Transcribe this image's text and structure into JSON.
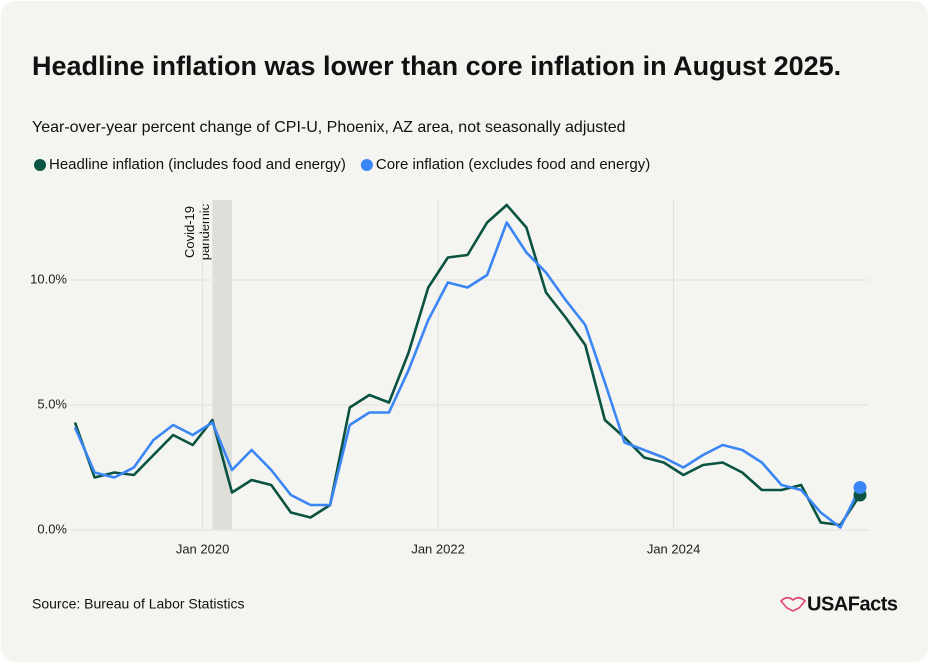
{
  "chart_data": {
    "type": "line",
    "title": "Headline inflation was lower than core inflation in August 2025.",
    "subtitle": "Year-over-year percent change of CPI-U, Phoenix, AZ area, not seasonally adjusted",
    "source": "Source: Bureau of Labor Statistics",
    "brand": "USAFacts",
    "x": [
      "2018-12",
      "2019-02",
      "2019-04",
      "2019-06",
      "2019-08",
      "2019-10",
      "2019-12",
      "2020-02",
      "2020-04",
      "2020-06",
      "2020-08",
      "2020-10",
      "2020-12",
      "2021-02",
      "2021-04",
      "2021-06",
      "2021-08",
      "2021-10",
      "2021-12",
      "2022-02",
      "2022-04",
      "2022-06",
      "2022-08",
      "2022-10",
      "2022-12",
      "2023-02",
      "2023-04",
      "2023-06",
      "2023-08",
      "2023-10",
      "2023-12",
      "2024-02",
      "2024-04",
      "2024-06",
      "2024-08",
      "2024-10",
      "2024-12",
      "2025-02",
      "2025-04",
      "2025-06",
      "2025-08"
    ],
    "series": [
      {
        "name": "Headline inflation (includes food and energy)",
        "color": "#0a5340",
        "values": [
          4.3,
          2.1,
          2.3,
          2.2,
          3.0,
          3.8,
          3.4,
          4.4,
          1.5,
          2.0,
          1.8,
          0.7,
          0.5,
          1.0,
          4.9,
          5.4,
          5.1,
          7.1,
          9.7,
          10.9,
          11.0,
          12.3,
          13.0,
          12.1,
          9.5,
          8.5,
          7.4,
          4.4,
          3.7,
          2.9,
          2.7,
          2.2,
          2.6,
          2.7,
          2.3,
          1.6,
          1.6,
          1.8,
          0.3,
          0.2,
          1.4
        ]
      },
      {
        "name": "Core inflation (excludes food and energy)",
        "color": "#3b86f5",
        "values": [
          4.1,
          2.3,
          2.1,
          2.5,
          3.6,
          4.2,
          3.8,
          4.3,
          2.4,
          3.2,
          2.4,
          1.4,
          1.0,
          1.0,
          4.2,
          4.7,
          4.7,
          6.4,
          8.4,
          9.9,
          9.7,
          10.2,
          12.3,
          11.1,
          10.3,
          9.2,
          8.2,
          5.9,
          3.5,
          3.2,
          2.9,
          2.5,
          3.0,
          3.4,
          3.2,
          2.7,
          1.8,
          1.6,
          0.7,
          0.1,
          1.7
        ]
      }
    ],
    "xlim": [
      "2018-12",
      "2025-08"
    ],
    "xticks": [
      {
        "value": "2020-01",
        "label": "Jan 2020"
      },
      {
        "value": "2022-01",
        "label": "Jan 2022"
      },
      {
        "value": "2024-01",
        "label": "Jan 2024"
      }
    ],
    "ylim": [
      0,
      13
    ],
    "yticks": [
      {
        "value": 0,
        "label": "0.0%"
      },
      {
        "value": 5,
        "label": "5.0%"
      },
      {
        "value": 10,
        "label": "10.0%"
      }
    ],
    "grid": true,
    "legend": "top-left",
    "annotation": {
      "text": [
        "Covid-19",
        "pandemic"
      ],
      "x0": "2020-02",
      "x1": "2020-04"
    }
  }
}
